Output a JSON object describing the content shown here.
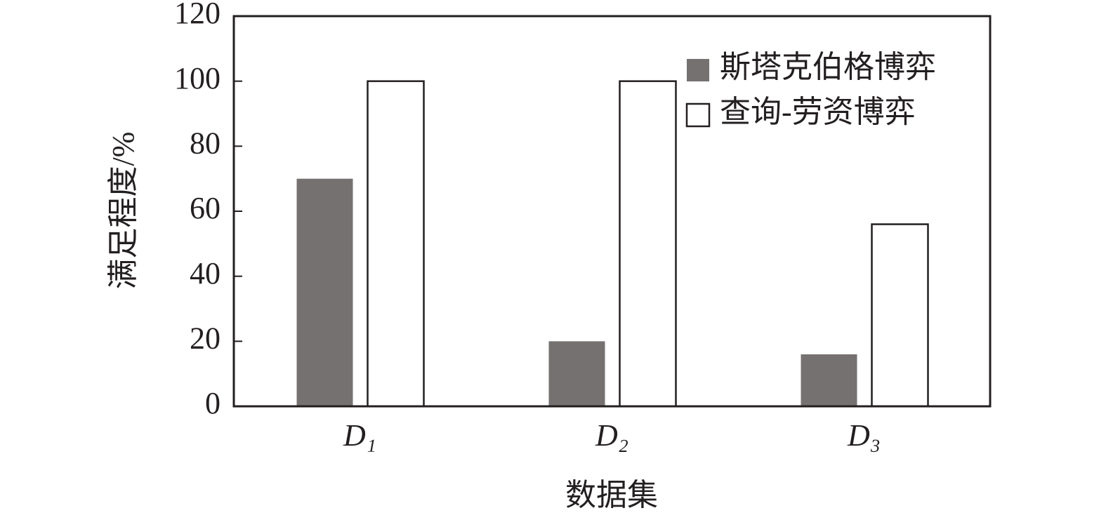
{
  "chart_data": {
    "type": "bar",
    "categories": [
      "D₁",
      "D₂",
      "D₃"
    ],
    "series": [
      {
        "name": "斯塔克伯格博弈",
        "color": "#767171",
        "values": [
          70,
          20,
          16
        ]
      },
      {
        "name": "查询-劳资博弈",
        "color": "#ffffff",
        "values": [
          100,
          100,
          56
        ]
      }
    ],
    "xlabel": "数据集",
    "ylabel": "满足程度/%",
    "ylim": [
      0,
      120
    ],
    "yticks": [
      0,
      20,
      40,
      60,
      80,
      100,
      120
    ],
    "legend": "upper right"
  }
}
